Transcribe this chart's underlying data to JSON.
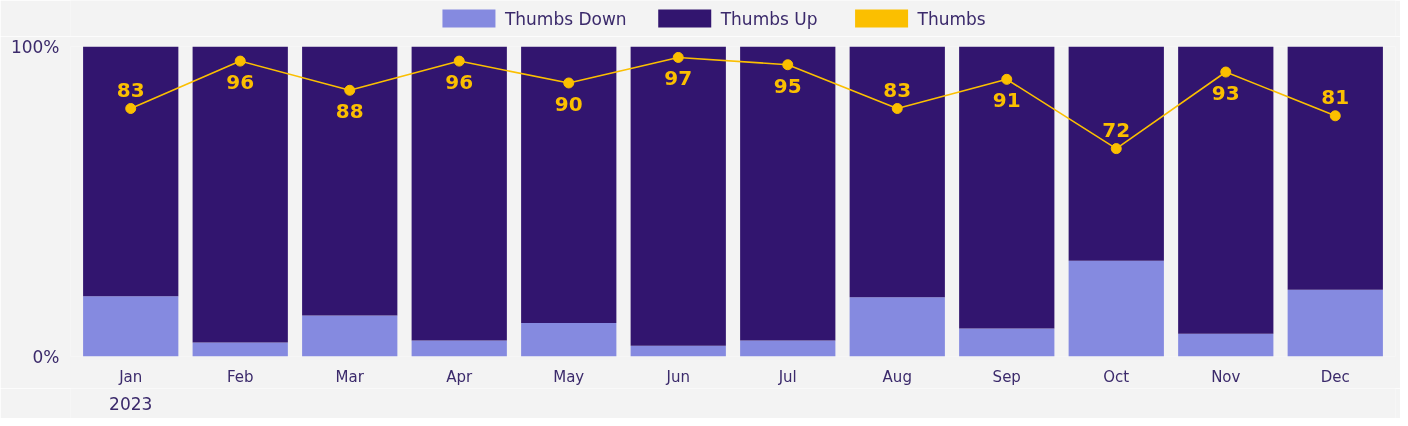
{
  "chart_data": {
    "type": "bar",
    "stacked": true,
    "categories": [
      "Jan",
      "Feb",
      "Mar",
      "Apr",
      "May",
      "Jun",
      "Jul",
      "Aug",
      "Sep",
      "Oct",
      "Nov",
      "Dec"
    ],
    "series": [
      {
        "name": "Thumbs Down",
        "color": "#858ae0",
        "values": [
          19.4,
          4.5,
          13.2,
          5.2,
          10.8,
          3.5,
          5.2,
          19.1,
          9.0,
          30.9,
          7.3,
          21.5
        ]
      },
      {
        "name": "Thumbs Up",
        "color": "#32156f",
        "values": [
          80.6,
          95.5,
          86.8,
          94.8,
          89.2,
          96.5,
          94.8,
          80.9,
          91.0,
          69.1,
          92.7,
          78.5
        ]
      },
      {
        "name": "Thumbs",
        "type": "line",
        "axis": "y2",
        "color": "#fbbf00",
        "marker": "circle",
        "data_labels": true,
        "values": [
          83,
          96,
          88,
          96,
          90,
          97,
          95,
          83,
          91,
          72,
          93,
          81
        ]
      }
    ],
    "ylim": [
      0,
      100
    ],
    "yticks": [
      {
        "value": 0,
        "label": "0%"
      },
      {
        "value": 100,
        "label": "100%"
      }
    ],
    "y2lim": [
      15,
      100
    ],
    "annotations": [
      "2023"
    ],
    "legend": "top"
  }
}
